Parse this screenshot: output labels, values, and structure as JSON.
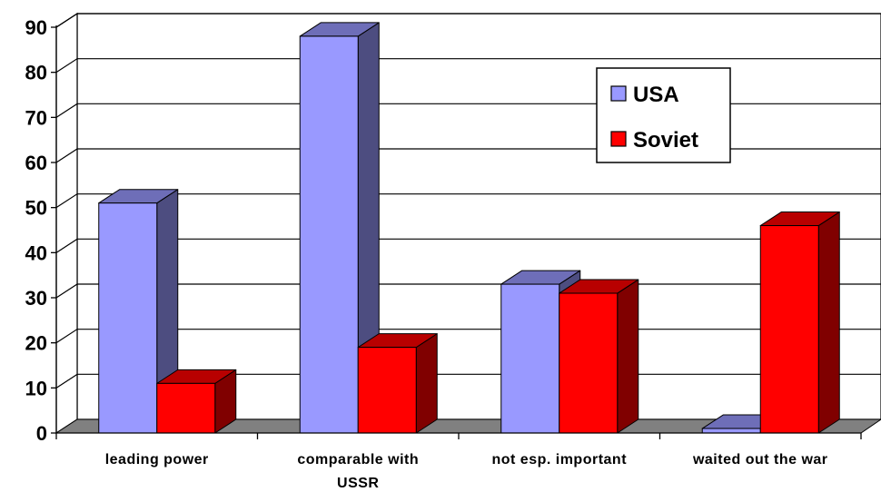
{
  "chart_data": {
    "type": "bar",
    "categories": [
      "leading power",
      "comparable with|USSR",
      "not esp. important",
      "waited out the war"
    ],
    "series": [
      {
        "name": "USA",
        "values": [
          51,
          88,
          33,
          1
        ],
        "color": "#9999FF"
      },
      {
        "name": "Soviet",
        "values": [
          11,
          19,
          31,
          46
        ],
        "color": "#FF0000"
      }
    ],
    "ylim": [
      0,
      90
    ],
    "yticks": [
      0,
      10,
      20,
      30,
      40,
      50,
      60,
      70,
      80,
      90
    ],
    "grid": true,
    "legend_position": "top-right",
    "style": "3d"
  }
}
